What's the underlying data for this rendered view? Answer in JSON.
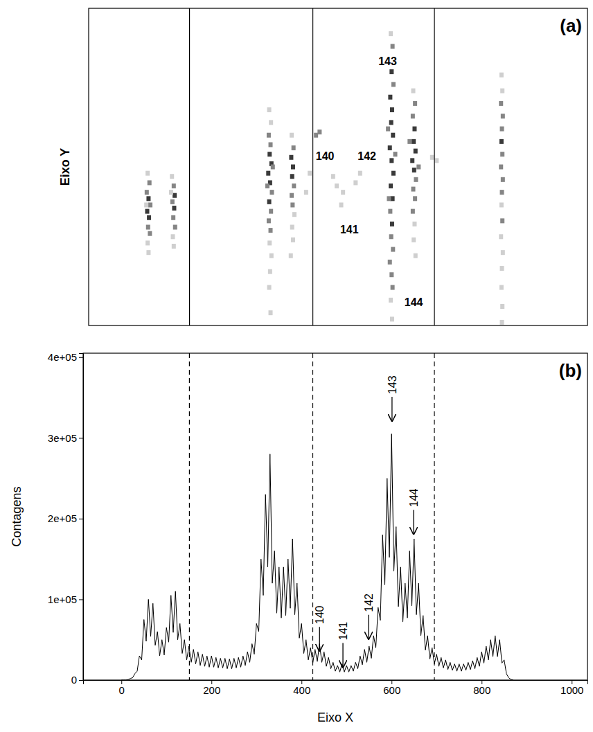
{
  "chart_data": [
    {
      "type": "scatter",
      "panel_label": "(a)",
      "ylabel": "Eixo Y",
      "tick_labels": false,
      "marker": "square",
      "xlim": [
        -73,
        1035
      ],
      "ylim": [
        0,
        100
      ],
      "vlines": [
        151,
        425,
        695
      ],
      "annotations": [
        {
          "text": "143",
          "x": 591,
          "y": 83
        },
        {
          "text": "140",
          "x": 452,
          "y": 53
        },
        {
          "text": "142",
          "x": 545,
          "y": 53
        },
        {
          "text": "141",
          "x": 506,
          "y": 30
        },
        {
          "text": "144",
          "x": 649,
          "y": 7
        }
      ],
      "points": [
        [
          58,
          48,
          1
        ],
        [
          62,
          45,
          2
        ],
        [
          56,
          42,
          2
        ],
        [
          60,
          40,
          3
        ],
        [
          64,
          38,
          2
        ],
        [
          57,
          36,
          3
        ],
        [
          61,
          34,
          3
        ],
        [
          59,
          31,
          2
        ],
        [
          63,
          29,
          2
        ],
        [
          58,
          26,
          1
        ],
        [
          60,
          23,
          1
        ],
        [
          55,
          38,
          1
        ],
        [
          112,
          47,
          1
        ],
        [
          116,
          44,
          2
        ],
        [
          118,
          41,
          3
        ],
        [
          113,
          39,
          2
        ],
        [
          117,
          37,
          3
        ],
        [
          115,
          34,
          2
        ],
        [
          119,
          31,
          2
        ],
        [
          114,
          28,
          1
        ],
        [
          116,
          25,
          1
        ],
        [
          110,
          42,
          1
        ],
        [
          328,
          68,
          1
        ],
        [
          332,
          64,
          1
        ],
        [
          327,
          60,
          2
        ],
        [
          331,
          57,
          2
        ],
        [
          329,
          54,
          3
        ],
        [
          333,
          51,
          3
        ],
        [
          326,
          48,
          3
        ],
        [
          330,
          45,
          3
        ],
        [
          334,
          42,
          2
        ],
        [
          328,
          39,
          3
        ],
        [
          332,
          36,
          2
        ],
        [
          327,
          33,
          2
        ],
        [
          331,
          30,
          2
        ],
        [
          329,
          26,
          1
        ],
        [
          333,
          22,
          1
        ],
        [
          330,
          17,
          1
        ],
        [
          328,
          12,
          1
        ],
        [
          331,
          4,
          1
        ],
        [
          336,
          50,
          2
        ],
        [
          324,
          44,
          2
        ],
        [
          378,
          60,
          1
        ],
        [
          382,
          56,
          2
        ],
        [
          377,
          53,
          3
        ],
        [
          381,
          50,
          3
        ],
        [
          379,
          47,
          3
        ],
        [
          383,
          44,
          2
        ],
        [
          378,
          41,
          2
        ],
        [
          380,
          38,
          2
        ],
        [
          384,
          35,
          1
        ],
        [
          379,
          31,
          1
        ],
        [
          381,
          27,
          1
        ],
        [
          376,
          22,
          1
        ],
        [
          432,
          60,
          2
        ],
        [
          440,
          61,
          2
        ],
        [
          418,
          48,
          1
        ],
        [
          470,
          47,
          1
        ],
        [
          410,
          42,
          1
        ],
        [
          478,
          44,
          1
        ],
        [
          492,
          42,
          1
        ],
        [
          520,
          45,
          1
        ],
        [
          530,
          48,
          1
        ],
        [
          488,
          38,
          1
        ],
        [
          598,
          92,
          1
        ],
        [
          602,
          88,
          2
        ],
        [
          596,
          84,
          2
        ],
        [
          600,
          80,
          3
        ],
        [
          604,
          76,
          2
        ],
        [
          597,
          72,
          3
        ],
        [
          601,
          68,
          3
        ],
        [
          599,
          64,
          3
        ],
        [
          603,
          60,
          3
        ],
        [
          596,
          56,
          3
        ],
        [
          600,
          52,
          3
        ],
        [
          604,
          48,
          3
        ],
        [
          598,
          44,
          3
        ],
        [
          602,
          40,
          3
        ],
        [
          597,
          36,
          2
        ],
        [
          601,
          32,
          3
        ],
        [
          599,
          28,
          2
        ],
        [
          603,
          24,
          2
        ],
        [
          596,
          20,
          2
        ],
        [
          600,
          16,
          2
        ],
        [
          602,
          12,
          2
        ],
        [
          598,
          8,
          1
        ],
        [
          601,
          2,
          1
        ],
        [
          592,
          62,
          2
        ],
        [
          608,
          54,
          2
        ],
        [
          594,
          40,
          2
        ],
        [
          648,
          74,
          1
        ],
        [
          652,
          70,
          2
        ],
        [
          647,
          66,
          2
        ],
        [
          651,
          62,
          3
        ],
        [
          649,
          58,
          3
        ],
        [
          653,
          55,
          3
        ],
        [
          646,
          52,
          3
        ],
        [
          650,
          49,
          3
        ],
        [
          654,
          46,
          2
        ],
        [
          648,
          43,
          2
        ],
        [
          652,
          40,
          2
        ],
        [
          647,
          36,
          2
        ],
        [
          651,
          32,
          1
        ],
        [
          649,
          27,
          1
        ],
        [
          653,
          22,
          1
        ],
        [
          640,
          58,
          2
        ],
        [
          660,
          50,
          2
        ],
        [
          690,
          53,
          1
        ],
        [
          700,
          52,
          1
        ],
        [
          844,
          79,
          1
        ],
        [
          846,
          74,
          1
        ],
        [
          843,
          70,
          2
        ],
        [
          847,
          66,
          2
        ],
        [
          845,
          62,
          2
        ],
        [
          844,
          58,
          3
        ],
        [
          846,
          54,
          2
        ],
        [
          843,
          50,
          2
        ],
        [
          847,
          46,
          2
        ],
        [
          845,
          42,
          2
        ],
        [
          844,
          38,
          1
        ],
        [
          846,
          33,
          2
        ],
        [
          843,
          28,
          1
        ],
        [
          847,
          23,
          1
        ],
        [
          845,
          18,
          1
        ],
        [
          844,
          12,
          1
        ],
        [
          846,
          6,
          1
        ],
        [
          845,
          1,
          1
        ]
      ]
    },
    {
      "type": "line",
      "panel_label": "(b)",
      "xlabel": "Eixo X",
      "ylabel": "Contagens",
      "xlim": [
        -85,
        1035
      ],
      "ylim": [
        0,
        405000
      ],
      "xticks": [
        0,
        200,
        400,
        600,
        800,
        1000
      ],
      "yticks": [
        {
          "value": 0,
          "label": "0"
        },
        {
          "value": 100000,
          "label": "1e+05"
        },
        {
          "value": 200000,
          "label": "2e+05"
        },
        {
          "value": 300000,
          "label": "3e+05"
        },
        {
          "value": 400000,
          "label": "4e+05"
        }
      ],
      "vlines": [
        151,
        425,
        695
      ],
      "line_style": "dashed",
      "annotations": [
        {
          "text": "140",
          "x": 440,
          "y": 35000
        },
        {
          "text": "141",
          "x": 492,
          "y": 15000
        },
        {
          "text": "142",
          "x": 549,
          "y": 50000
        },
        {
          "text": "143",
          "x": 601,
          "y": 320000
        },
        {
          "text": "144",
          "x": 649,
          "y": 180000
        }
      ],
      "x": [
        0,
        5,
        10,
        15,
        20,
        25,
        30,
        35,
        40,
        45,
        50,
        55,
        60,
        65,
        70,
        75,
        80,
        85,
        90,
        95,
        100,
        105,
        110,
        115,
        120,
        125,
        130,
        135,
        140,
        145,
        150,
        155,
        160,
        165,
        170,
        175,
        180,
        185,
        190,
        195,
        200,
        205,
        210,
        215,
        220,
        225,
        230,
        235,
        240,
        245,
        250,
        255,
        260,
        265,
        270,
        275,
        280,
        285,
        290,
        295,
        300,
        305,
        310,
        315,
        320,
        325,
        330,
        335,
        340,
        345,
        350,
        355,
        360,
        365,
        370,
        375,
        380,
        385,
        390,
        395,
        400,
        405,
        410,
        415,
        420,
        425,
        430,
        435,
        440,
        445,
        450,
        455,
        460,
        465,
        470,
        475,
        480,
        485,
        490,
        495,
        500,
        505,
        510,
        515,
        520,
        525,
        530,
        535,
        540,
        545,
        550,
        555,
        560,
        565,
        570,
        575,
        580,
        585,
        590,
        595,
        600,
        605,
        610,
        615,
        620,
        625,
        630,
        635,
        640,
        645,
        650,
        655,
        660,
        665,
        670,
        675,
        680,
        685,
        690,
        695,
        700,
        705,
        710,
        715,
        720,
        725,
        730,
        735,
        740,
        745,
        750,
        755,
        760,
        765,
        770,
        775,
        780,
        785,
        790,
        795,
        800,
        805,
        810,
        815,
        820,
        825,
        830,
        835,
        840,
        845,
        850,
        855,
        860,
        865,
        870
      ],
      "series": [
        {
          "color": "#000000",
          "values": [
            0,
            0,
            0,
            500,
            2000,
            3000,
            8000,
            11000,
            30000,
            25000,
            75000,
            48000,
            100000,
            54000,
            95000,
            43000,
            60000,
            30000,
            50000,
            31000,
            65000,
            47000,
            105000,
            59000,
            110000,
            50000,
            70000,
            33000,
            50000,
            25000,
            42000,
            22000,
            38000,
            20000,
            35000,
            18000,
            32000,
            17000,
            30000,
            16000,
            30000,
            16000,
            28000,
            15000,
            27000,
            15000,
            27000,
            14000,
            26000,
            14000,
            27000,
            15000,
            28000,
            16000,
            30000,
            18000,
            35000,
            22000,
            45000,
            32000,
            70000,
            60000,
            150000,
            105000,
            230000,
            140000,
            280000,
            120000,
            160000,
            83000,
            140000,
            77000,
            140000,
            80000,
            150000,
            89000,
            175000,
            81000,
            120000,
            52000,
            70000,
            33000,
            50000,
            25000,
            40000,
            21000,
            38000,
            23000,
            45000,
            22000,
            35000,
            17000,
            28000,
            14000,
            22000,
            11000,
            18000,
            10000,
            20000,
            10000,
            18000,
            10000,
            18000,
            11000,
            22000,
            14000,
            30000,
            19000,
            38000,
            22000,
            42000,
            27000,
            55000,
            40000,
            90000,
            74000,
            180000,
            118000,
            250000,
            152000,
            305000,
            135000,
            190000,
            91000,
            140000,
            72000,
            120000,
            77000,
            160000,
            92000,
            175000,
            81000,
            120000,
            55000,
            80000,
            37000,
            55000,
            26000,
            40000,
            20000,
            32000,
            17000,
            28000,
            15000,
            25000,
            13000,
            22000,
            12000,
            20000,
            11000,
            20000,
            11000,
            20000,
            12000,
            22000,
            13000,
            24000,
            14000,
            28000,
            17000,
            35000,
            21000,
            42000,
            25000,
            50000,
            29000,
            55000,
            29000,
            50000,
            21000,
            25000,
            8000,
            3000,
            800,
            0
          ]
        }
      ]
    }
  ]
}
